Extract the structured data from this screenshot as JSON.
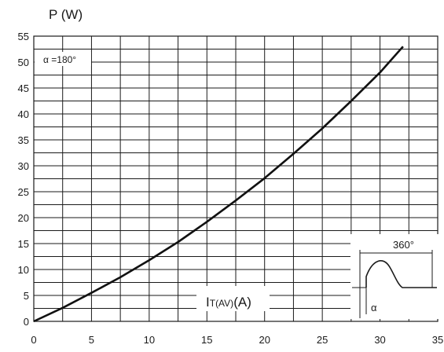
{
  "chart_data": {
    "type": "line",
    "ylabel": "P (W)",
    "xlabel_main": "I",
    "xlabel_sub": "T(AV)",
    "xlabel_unit": "(A)",
    "xlim": [
      0,
      35
    ],
    "ylim": [
      0,
      55
    ],
    "x_ticks": [
      "0",
      "5",
      "10",
      "15",
      "20",
      "25",
      "30",
      "35"
    ],
    "y_ticks": [
      "0",
      "5",
      "10",
      "15",
      "20",
      "25",
      "30",
      "35",
      "40",
      "45",
      "50",
      "55"
    ],
    "x_minor_step": 2.5,
    "y_minor_step": 2.5,
    "grid": true,
    "annotation": "α =180°",
    "series": [
      {
        "x": [
          0,
          2.5,
          5,
          7.5,
          10,
          12.5,
          15,
          17.5,
          20,
          22.5,
          25,
          27.5,
          30,
          32
        ],
        "y": [
          0,
          2.6,
          5.5,
          8.5,
          11.8,
          15.3,
          19.2,
          23.3,
          27.6,
          32.3,
          37.2,
          42.5,
          48,
          53
        ]
      }
    ]
  },
  "inset": {
    "period_label": "360°",
    "angle_label": "α"
  }
}
